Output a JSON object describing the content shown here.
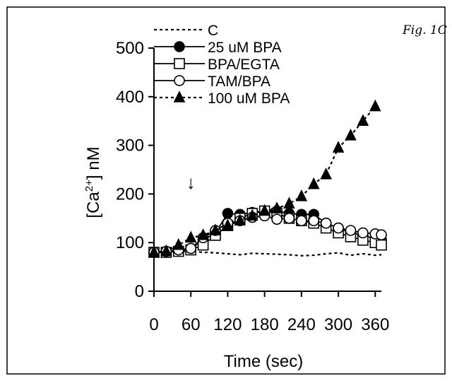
{
  "figure_label": "Fig. 1C",
  "chart_data": {
    "type": "line",
    "title": "",
    "xlabel": "Time (sec)",
    "ylabel_main": "[Ca",
    "ylabel_sup": "2+",
    "ylabel_tail": "] nM",
    "xlim": [
      0,
      370
    ],
    "ylim": [
      0,
      500
    ],
    "xticks": [
      0,
      60,
      120,
      180,
      240,
      300,
      360
    ],
    "xtick_labels": [
      "0",
      "60",
      "120",
      "180",
      "240",
      "300",
      "360"
    ],
    "yticks": [
      0,
      100,
      200,
      300,
      400,
      500
    ],
    "ytick_labels": [
      "0",
      "100",
      "200",
      "300",
      "400",
      "500"
    ],
    "grid": false,
    "legend_position": "top-left",
    "annotation": {
      "text": "↓",
      "x": 60,
      "y": 225
    },
    "series": [
      {
        "name": "C",
        "marker": "none",
        "line": "dotted",
        "color": "#000000",
        "x": [
          0,
          20,
          40,
          60,
          80,
          100,
          120,
          140,
          160,
          180,
          200,
          220,
          240,
          260,
          280,
          300,
          320,
          340,
          360,
          370
        ],
        "y": [
          80,
          81,
          82,
          82,
          80,
          79,
          77,
          75,
          78,
          77,
          76,
          75,
          73,
          74,
          77,
          79,
          74,
          77,
          74,
          75
        ]
      },
      {
        "name": "25 uM BPA",
        "marker": "filled-circle",
        "line": "solid",
        "color": "#000000",
        "x": [
          0,
          20,
          40,
          60,
          80,
          100,
          120,
          140,
          160,
          180,
          200,
          220,
          240,
          260,
          280,
          300,
          320,
          340,
          360,
          370
        ],
        "y": [
          80,
          82,
          85,
          88,
          105,
          120,
          160,
          158,
          162,
          165,
          165,
          160,
          158,
          158,
          140,
          130,
          120,
          115,
          108,
          106
        ]
      },
      {
        "name": "BPA/EGTA",
        "marker": "open-square",
        "line": "solid",
        "color": "#000000",
        "x": [
          0,
          20,
          40,
          60,
          80,
          100,
          120,
          140,
          160,
          180,
          200,
          220,
          240,
          260,
          280,
          300,
          320,
          340,
          360,
          370
        ],
        "y": [
          80,
          80,
          82,
          85,
          95,
          115,
          135,
          150,
          160,
          165,
          160,
          150,
          145,
          140,
          130,
          120,
          112,
          105,
          100,
          95
        ]
      },
      {
        "name": "TAM/BPA",
        "marker": "open-circle",
        "line": "solid",
        "color": "#000000",
        "x": [
          0,
          20,
          40,
          60,
          80,
          100,
          120,
          140,
          160,
          180,
          200,
          220,
          240,
          260,
          280,
          300,
          320,
          340,
          360,
          370
        ],
        "y": [
          80,
          82,
          85,
          88,
          110,
          125,
          140,
          145,
          152,
          155,
          148,
          150,
          145,
          145,
          140,
          130,
          125,
          120,
          118,
          116
        ]
      },
      {
        "name": "100 uM BPA",
        "marker": "filled-triangle",
        "line": "dotted",
        "color": "#000000",
        "x": [
          0,
          20,
          40,
          60,
          80,
          100,
          120,
          140,
          160,
          180,
          200,
          220,
          240,
          260,
          280,
          300,
          320,
          340,
          360
        ],
        "y": [
          80,
          82,
          95,
          110,
          115,
          125,
          135,
          145,
          155,
          165,
          170,
          180,
          195,
          220,
          240,
          295,
          320,
          350,
          380
        ]
      }
    ]
  }
}
